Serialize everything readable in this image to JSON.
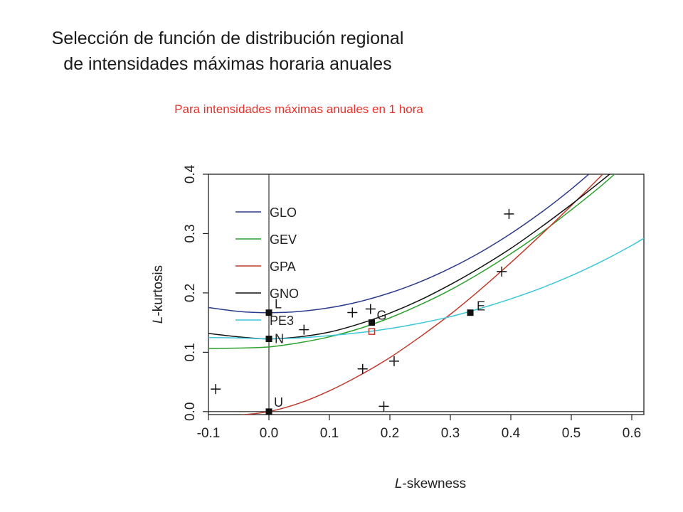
{
  "slide": {
    "title_line1": "Selección de función de distribución regional",
    "title_line2": "de intensidades máximas horaria anuales",
    "subtitle": "Para intensidades máximas anuales en 1 hora"
  },
  "chart_data": {
    "type": "line",
    "title": "",
    "xlabel_italic": "L",
    "xlabel_rest": "-skewness",
    "ylabel_italic": "L",
    "ylabel_rest": "-kurtosis",
    "xlim": [
      -0.1,
      0.62
    ],
    "ylim": [
      -0.005,
      0.4
    ],
    "x_ticks": [
      -0.1,
      0.0,
      0.1,
      0.2,
      0.3,
      0.4,
      0.5,
      0.6
    ],
    "x_tick_labels": [
      "-0.1",
      "0.0",
      "0.1",
      "0.2",
      "0.3",
      "0.4",
      "0.5",
      "0.6"
    ],
    "y_ticks": [
      0.0,
      0.1,
      0.2,
      0.3,
      0.4
    ],
    "y_tick_labels": [
      "0.0",
      "0.1",
      "0.2",
      "0.3",
      "0.4"
    ],
    "legend_position": "top-left",
    "series": [
      {
        "name": "GLO",
        "color": "#2b3a8c",
        "x": [
          -0.11,
          -0.05,
          0.0,
          0.05,
          0.1,
          0.15,
          0.2,
          0.25,
          0.3,
          0.35,
          0.4,
          0.45,
          0.5,
          0.55
        ],
        "y": [
          0.1768,
          0.1687,
          0.1667,
          0.1687,
          0.175,
          0.1854,
          0.2,
          0.2187,
          0.2417,
          0.2687,
          0.3,
          0.3354,
          0.375,
          0.4187
        ]
      },
      {
        "name": "GEV",
        "color": "#2ca02c",
        "x": [
          -0.11,
          -0.05,
          0.0,
          0.05,
          0.1,
          0.15,
          0.2,
          0.25,
          0.3,
          0.35,
          0.4,
          0.45,
          0.5,
          0.55,
          0.6
        ],
        "y": [
          0.106,
          0.107,
          0.109,
          0.116,
          0.126,
          0.14,
          0.158,
          0.18,
          0.205,
          0.234,
          0.266,
          0.301,
          0.34,
          0.381,
          0.426
        ]
      },
      {
        "name": "GPA",
        "color": "#c0392b",
        "x": [
          -0.11,
          -0.05,
          0.0,
          0.05,
          0.1,
          0.15,
          0.2,
          0.25,
          0.3,
          0.35,
          0.4,
          0.45,
          0.5,
          0.55,
          0.6
        ],
        "y": [
          -0.012,
          -0.006,
          0.0,
          0.014,
          0.035,
          0.061,
          0.091,
          0.126,
          0.164,
          0.206,
          0.251,
          0.298,
          0.347,
          0.398,
          0.45
        ]
      },
      {
        "name": "GNO",
        "color": "#111111",
        "x": [
          -0.11,
          -0.05,
          0.0,
          0.05,
          0.1,
          0.15,
          0.2,
          0.25,
          0.3,
          0.35,
          0.4,
          0.45,
          0.5,
          0.55,
          0.6,
          0.62
        ],
        "y": [
          0.133,
          0.126,
          0.1226,
          0.126,
          0.134,
          0.148,
          0.166,
          0.188,
          0.214,
          0.243,
          0.275,
          0.311,
          0.349,
          0.389,
          0.431,
          0.449
        ]
      },
      {
        "name": "PE3",
        "color": "#3cc6d8",
        "x": [
          -0.11,
          -0.05,
          0.0,
          0.05,
          0.1,
          0.15,
          0.2,
          0.25,
          0.3,
          0.35,
          0.4,
          0.45,
          0.5,
          0.55,
          0.6,
          0.62
        ],
        "y": [
          0.125,
          0.124,
          0.1226,
          0.124,
          0.128,
          0.133,
          0.14,
          0.149,
          0.16,
          0.174,
          0.19,
          0.208,
          0.229,
          0.253,
          0.28,
          0.292
        ]
      }
    ],
    "reference_points": [
      {
        "label": "L",
        "x": 0.0,
        "y": 0.1667
      },
      {
        "label": "N",
        "x": 0.0,
        "y": 0.1226
      },
      {
        "label": "G",
        "x": 0.17,
        "y": 0.15
      },
      {
        "label": "E",
        "x": 0.333,
        "y": 0.1667
      },
      {
        "label": "U",
        "x": 0.0,
        "y": 0.0
      }
    ],
    "regional_average": {
      "x": 0.17,
      "y": 0.135,
      "color": "#c0392b"
    },
    "sites": [
      {
        "x": 0.397,
        "y": 0.333
      },
      {
        "x": 0.385,
        "y": 0.236
      },
      {
        "x": 0.138,
        "y": 0.167
      },
      {
        "x": 0.168,
        "y": 0.173
      },
      {
        "x": 0.058,
        "y": 0.138
      },
      {
        "x": 0.155,
        "y": 0.072
      },
      {
        "x": 0.207,
        "y": 0.085
      },
      {
        "x": -0.088,
        "y": 0.038
      },
      {
        "x": 0.19,
        "y": 0.009
      }
    ]
  }
}
